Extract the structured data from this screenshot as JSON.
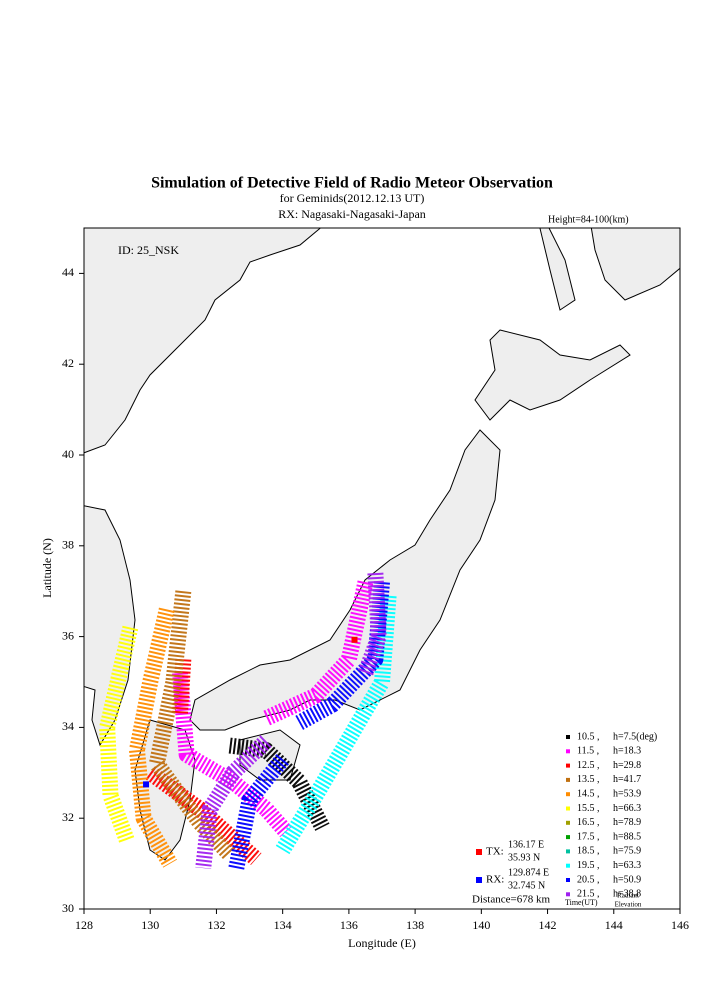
{
  "chart_data": {
    "type": "map",
    "title": "Simulation of Detective Field of Radio Meteor Observation",
    "subtitle": "for Geminids(2012.12.13 UT)",
    "receiver": "RX: Nagasaki-Nagasaki-Japan",
    "height_note": "Height=84-100(km)",
    "id_label": "ID: 25_NSK",
    "xlabel": "Longitude (E)",
    "ylabel": "Latitude (N)",
    "xlim": [
      128,
      146
    ],
    "ylim": [
      30,
      45
    ],
    "xticks": [
      128,
      130,
      132,
      134,
      136,
      138,
      140,
      142,
      144,
      146
    ],
    "yticks": [
      30,
      32,
      34,
      36,
      38,
      40,
      42,
      44
    ],
    "legend_time_title": "Time(UT)",
    "legend_elev_title": [
      "Radiant",
      "Elevation"
    ],
    "series": [
      {
        "name": "10.5 ,",
        "color": "#000000",
        "elevation": 7.5,
        "elevation_label": "h=7.5(deg)",
        "x": [
          132.4,
          133.5,
          134.5,
          135.2
        ],
        "y": [
          33.6,
          33.5,
          32.8,
          31.8
        ]
      },
      {
        "name": "11.5 ,",
        "color": "#ff00ff",
        "elevation": 18.3,
        "elevation_label": "h=18.3",
        "x": [
          130.9,
          131.1,
          132.5,
          133.5,
          134.1,
          null,
          136.5,
          136.0,
          135.0,
          133.5
        ],
        "y": [
          35.2,
          33.4,
          32.8,
          32.2,
          31.7,
          null,
          37.2,
          35.5,
          34.7,
          34.2
        ]
      },
      {
        "name": "12.5 ,",
        "color": "#ff0000",
        "elevation": 29.8,
        "elevation_label": "h=29.8",
        "x": [
          131.0,
          130.9,
          null,
          130.0,
          131.5,
          133.2
        ],
        "y": [
          35.5,
          34.3,
          null,
          33.0,
          32.2,
          31.1
        ]
      },
      {
        "name": "13.5 ,",
        "color": "#c07010",
        "elevation": 41.7,
        "elevation_label": "h=41.7",
        "x": [
          131.0,
          130.7,
          130.2,
          131.5,
          132.4
        ],
        "y": [
          37.0,
          35.0,
          33.2,
          31.9,
          31.2
        ]
      },
      {
        "name": "14.5 ,",
        "color": "#ff8c00",
        "elevation": 53.9,
        "elevation_label": "h=53.9",
        "x": [
          130.5,
          130.0,
          129.6,
          129.8,
          130.6
        ],
        "y": [
          36.6,
          35.0,
          33.5,
          32.0,
          31.0
        ]
      },
      {
        "name": "15.5 ,",
        "color": "#ffff00",
        "elevation": 66.3,
        "elevation_label": "h=66.3",
        "x": [
          129.4,
          128.7,
          128.8,
          129.3
        ],
        "y": [
          36.2,
          34.0,
          32.5,
          31.5
        ]
      },
      {
        "name": "16.5 ,",
        "color": "#a0a000",
        "elevation": 78.9,
        "elevation_label": "h=78.9",
        "x": [],
        "y": []
      },
      {
        "name": "17.5 ,",
        "color": "#00a000",
        "elevation": 88.5,
        "elevation_label": "h=88.5",
        "x": [],
        "y": []
      },
      {
        "name": "18.5 ,",
        "color": "#00c0a0",
        "elevation": 75.9,
        "elevation_label": "h=75.9",
        "x": [],
        "y": []
      },
      {
        "name": "19.5 ,",
        "color": "#00ffff",
        "elevation": 63.3,
        "elevation_label": "h=63.3",
        "x": [
          137.2,
          137.0,
          136.2,
          135.0,
          134.0
        ],
        "y": [
          36.9,
          35.0,
          34.0,
          32.5,
          31.3
        ]
      },
      {
        "name": "20.5 ,",
        "color": "#0000ff",
        "elevation": 50.9,
        "elevation_label": "h=50.9",
        "x": [
          134.0,
          133.0,
          132.6,
          null,
          137.0,
          136.8,
          135.5,
          134.5
        ],
        "y": [
          33.3,
          32.4,
          30.9,
          null,
          37.2,
          35.5,
          34.5,
          34.1
        ]
      },
      {
        "name": "21.5 ,",
        "color": "#a020f0",
        "elevation": 38.8,
        "elevation_label": "h=38.8",
        "x": [
          133.5,
          132.5,
          131.8,
          131.6,
          null,
          136.8,
          136.9,
          136.5
        ],
        "y": [
          33.7,
          33.0,
          32.2,
          30.9,
          null,
          37.4,
          36.0,
          35.2
        ]
      }
    ],
    "stations": [
      {
        "label": "TX:",
        "color": "#ff0000",
        "lon": 136.17,
        "lat": 35.93,
        "lon_label": "136.17 E",
        "lat_label": "35.93 N"
      },
      {
        "label": "RX:",
        "color": "#0000ff",
        "lon": 129.874,
        "lat": 32.745,
        "lon_label": "129.874 E",
        "lat_label": "32.745 N"
      }
    ],
    "distance": "Distance=678 km"
  }
}
